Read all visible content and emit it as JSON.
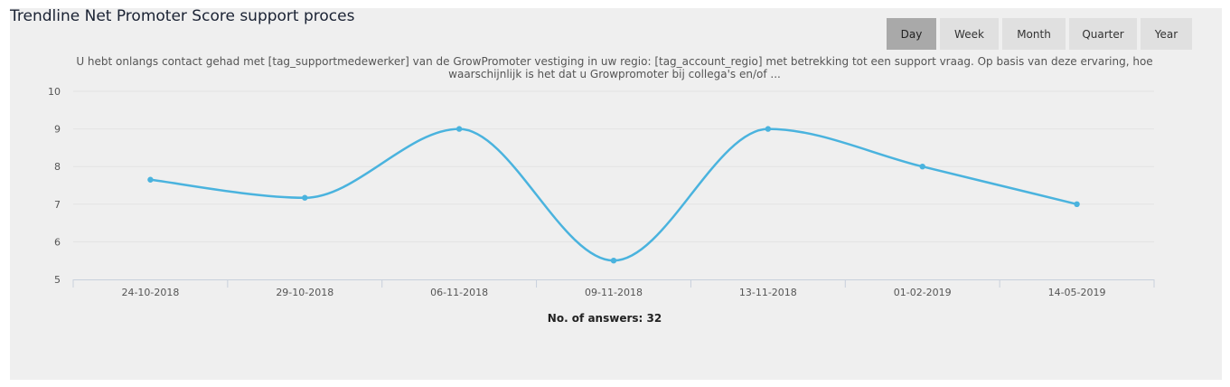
{
  "title": "Trendline Net Promoter Score support proces",
  "range_buttons": [
    {
      "label": "Day",
      "active": true
    },
    {
      "label": "Week",
      "active": false
    },
    {
      "label": "Month",
      "active": false
    },
    {
      "label": "Quarter",
      "active": false
    },
    {
      "label": "Year",
      "active": false
    }
  ],
  "footer": {
    "label": "No. of answers:",
    "value": "32"
  },
  "colors": {
    "line": "#4ab3de",
    "panel": "#efefef",
    "active_button": "#a9a9a9",
    "button": "#e0e0e0"
  },
  "chart_data": {
    "type": "line",
    "title": "U hebt onlangs contact gehad met [tag_supportmedewerker] van de GrowPromoter vestiging in uw regio: [tag_account_regio] met betrekking tot een support vraag. Op basis van deze ervaring, hoe waarschijnlijk is het dat u Growpromoter bij collega's en/of ...",
    "categories": [
      "24-10-2018",
      "29-10-2018",
      "06-11-2018",
      "09-11-2018",
      "13-11-2018",
      "01-02-2019",
      "14-05-2019"
    ],
    "series": [
      {
        "values": [
          7.65,
          7.17,
          9.0,
          5.5,
          9.0,
          8.0,
          7.0
        ]
      }
    ],
    "ylim": [
      5,
      10
    ],
    "yticks": [
      5,
      6,
      7,
      8,
      9,
      10
    ],
    "xlabel": "",
    "ylabel": "",
    "grid": true,
    "smooth": true
  }
}
